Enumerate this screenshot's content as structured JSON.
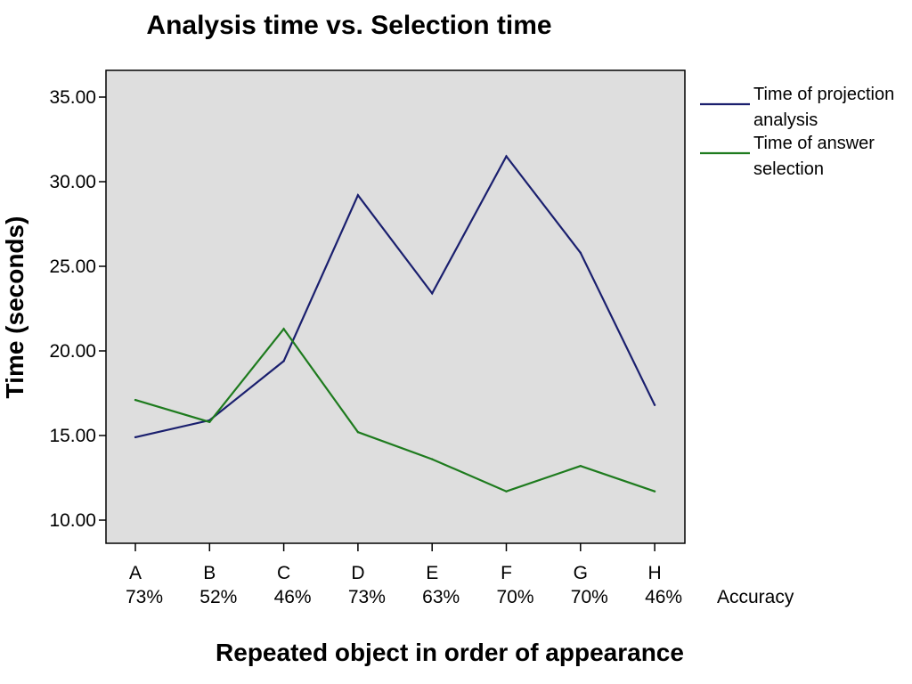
{
  "chart_data": {
    "type": "line",
    "title": "Analysis time vs. Selection time",
    "xlabel": "Repeated object in order of appearance",
    "ylabel": "Time (seconds)",
    "categories": [
      "A",
      "B",
      "C",
      "D",
      "E",
      "F",
      "G",
      "H"
    ],
    "accuracy": [
      "73%",
      "52%",
      "46%",
      "73%",
      "63%",
      "70%",
      "70%",
      "46%"
    ],
    "accuracy_label": "Accuracy",
    "ylim": [
      9.0,
      36.5
    ],
    "yticks": [
      10,
      15,
      20,
      25,
      30,
      35
    ],
    "ytick_labels": [
      "10.00",
      "15.00",
      "20.00",
      "25.00",
      "30.00",
      "35.00"
    ],
    "grid": false,
    "legend_position": "right",
    "series": [
      {
        "name": "Time of projection analysis",
        "name_lines": [
          "Time of projection",
          "analysis"
        ],
        "color": "#1a1f6e",
        "values": [
          14.9,
          15.9,
          19.4,
          29.2,
          23.4,
          31.5,
          25.8,
          16.8
        ]
      },
      {
        "name": "Time of answer selection",
        "name_lines": [
          "Time of answer",
          "selection"
        ],
        "color": "#1e7b1e",
        "values": [
          17.1,
          15.8,
          21.3,
          15.2,
          13.6,
          11.7,
          13.2,
          11.7
        ]
      }
    ],
    "plot_background": "#dedede"
  }
}
